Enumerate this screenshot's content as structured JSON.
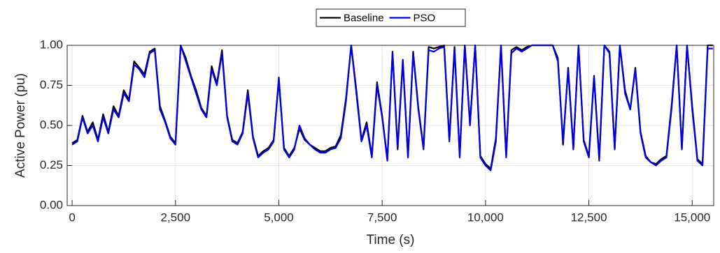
{
  "chart_data": {
    "type": "line",
    "x_label": "Time (s)",
    "y_label": "Active Power (pu)",
    "x": [
      0,
      125,
      250,
      375,
      500,
      625,
      750,
      875,
      1000,
      1125,
      1250,
      1375,
      1500,
      1625,
      1750,
      1875,
      2000,
      2125,
      2250,
      2375,
      2500,
      2625,
      2750,
      2875,
      3000,
      3125,
      3250,
      3375,
      3500,
      3625,
      3750,
      3875,
      4000,
      4125,
      4250,
      4375,
      4500,
      4625,
      4750,
      4875,
      5000,
      5125,
      5250,
      5375,
      5500,
      5625,
      5750,
      5875,
      6000,
      6125,
      6250,
      6375,
      6500,
      6625,
      6750,
      6875,
      7000,
      7125,
      7250,
      7375,
      7500,
      7625,
      7750,
      7875,
      8000,
      8125,
      8250,
      8375,
      8500,
      8625,
      8750,
      8875,
      9000,
      9125,
      9250,
      9375,
      9500,
      9625,
      9750,
      9875,
      10000,
      10125,
      10250,
      10375,
      10500,
      10625,
      10750,
      10875,
      11000,
      11125,
      11250,
      11375,
      11500,
      11625,
      11750,
      11875,
      12000,
      12125,
      12250,
      12375,
      12500,
      12625,
      12750,
      12875,
      13000,
      13125,
      13250,
      13375,
      13500,
      13625,
      13750,
      13875,
      14000,
      14125,
      14250,
      14375,
      14500,
      14625,
      14750,
      14875,
      15000,
      15125,
      15250,
      15375,
      15500
    ],
    "series": [
      {
        "name": "Baseline",
        "color": "#000000",
        "values": [
          0.39,
          0.41,
          0.56,
          0.46,
          0.52,
          0.41,
          0.57,
          0.46,
          0.62,
          0.56,
          0.72,
          0.66,
          0.9,
          0.86,
          0.82,
          0.96,
          0.98,
          0.62,
          0.53,
          0.43,
          0.39,
          1.0,
          0.92,
          0.81,
          0.72,
          0.61,
          0.56,
          0.87,
          0.76,
          0.97,
          0.56,
          0.41,
          0.39,
          0.46,
          0.72,
          0.43,
          0.31,
          0.34,
          0.36,
          0.41,
          0.78,
          0.36,
          0.31,
          0.36,
          0.48,
          0.41,
          0.38,
          0.36,
          0.34,
          0.34,
          0.36,
          0.37,
          0.44,
          0.67,
          1.0,
          0.72,
          0.41,
          0.52,
          0.31,
          0.77,
          0.56,
          0.29,
          0.96,
          0.36,
          0.91,
          0.31,
          0.96,
          0.61,
          0.36,
          0.99,
          0.98,
          0.99,
          1.0,
          0.41,
          0.99,
          0.31,
          1.0,
          0.51,
          1.0,
          0.31,
          0.26,
          0.23,
          0.42,
          1.0,
          0.31,
          0.97,
          0.99,
          0.97,
          0.99,
          1.0,
          1.0,
          1.0,
          1.0,
          1.0,
          0.92,
          0.38,
          0.86,
          0.36,
          1.0,
          0.41,
          0.31,
          0.81,
          0.29,
          1.0,
          0.96,
          0.36,
          1.0,
          0.72,
          0.6,
          0.86,
          0.46,
          0.31,
          0.27,
          0.26,
          0.29,
          0.31,
          0.62,
          1.0,
          0.36,
          1.0,
          0.62,
          0.29,
          0.26,
          1.0,
          1.0
        ]
      },
      {
        "name": "PSO",
        "color": "#0000e6",
        "values": [
          0.38,
          0.4,
          0.55,
          0.45,
          0.5,
          0.4,
          0.55,
          0.45,
          0.6,
          0.55,
          0.7,
          0.65,
          0.88,
          0.85,
          0.8,
          0.95,
          0.97,
          0.6,
          0.52,
          0.42,
          0.38,
          1.0,
          0.9,
          0.8,
          0.7,
          0.6,
          0.55,
          0.85,
          0.75,
          0.95,
          0.55,
          0.4,
          0.38,
          0.45,
          0.7,
          0.42,
          0.3,
          0.33,
          0.35,
          0.4,
          0.8,
          0.35,
          0.3,
          0.35,
          0.5,
          0.42,
          0.38,
          0.35,
          0.33,
          0.33,
          0.35,
          0.36,
          0.42,
          0.65,
          1.0,
          0.7,
          0.4,
          0.5,
          0.3,
          0.75,
          0.55,
          0.28,
          0.95,
          0.35,
          0.9,
          0.3,
          0.95,
          0.6,
          0.35,
          0.97,
          0.96,
          0.98,
          0.99,
          0.4,
          0.98,
          0.3,
          1.0,
          0.5,
          1.0,
          0.3,
          0.25,
          0.22,
          0.4,
          1.0,
          0.3,
          0.95,
          0.98,
          0.96,
          0.98,
          1.0,
          1.0,
          1.0,
          1.0,
          1.0,
          0.9,
          0.4,
          0.85,
          0.35,
          1.0,
          0.4,
          0.3,
          0.8,
          0.28,
          1.0,
          0.95,
          0.35,
          1.0,
          0.7,
          0.6,
          0.85,
          0.45,
          0.3,
          0.27,
          0.25,
          0.28,
          0.3,
          0.6,
          1.0,
          0.35,
          1.0,
          0.6,
          0.28,
          0.25,
          0.98,
          0.98
        ]
      }
    ],
    "xlim": [
      -120,
      15520
    ],
    "xticks": [
      0,
      {
        "value": 2500,
        "label": "2,500"
      },
      {
        "value": 5000,
        "label": "5,000"
      },
      {
        "value": 7500,
        "label": "7,500"
      },
      {
        "value": 10000,
        "label": "10,000"
      },
      {
        "value": 12500,
        "label": "12,500"
      },
      {
        "value": 15000,
        "label": "15,000"
      }
    ],
    "ylim": [
      0,
      1
    ],
    "yticks": [
      {
        "value": 0,
        "label": "0.00"
      },
      {
        "value": 0.25,
        "label": "0.25"
      },
      {
        "value": 0.5,
        "label": "0.50"
      },
      {
        "value": 0.75,
        "label": "0.75"
      },
      {
        "value": 1,
        "label": "1.00"
      }
    ],
    "grid": true,
    "legend": "top"
  }
}
